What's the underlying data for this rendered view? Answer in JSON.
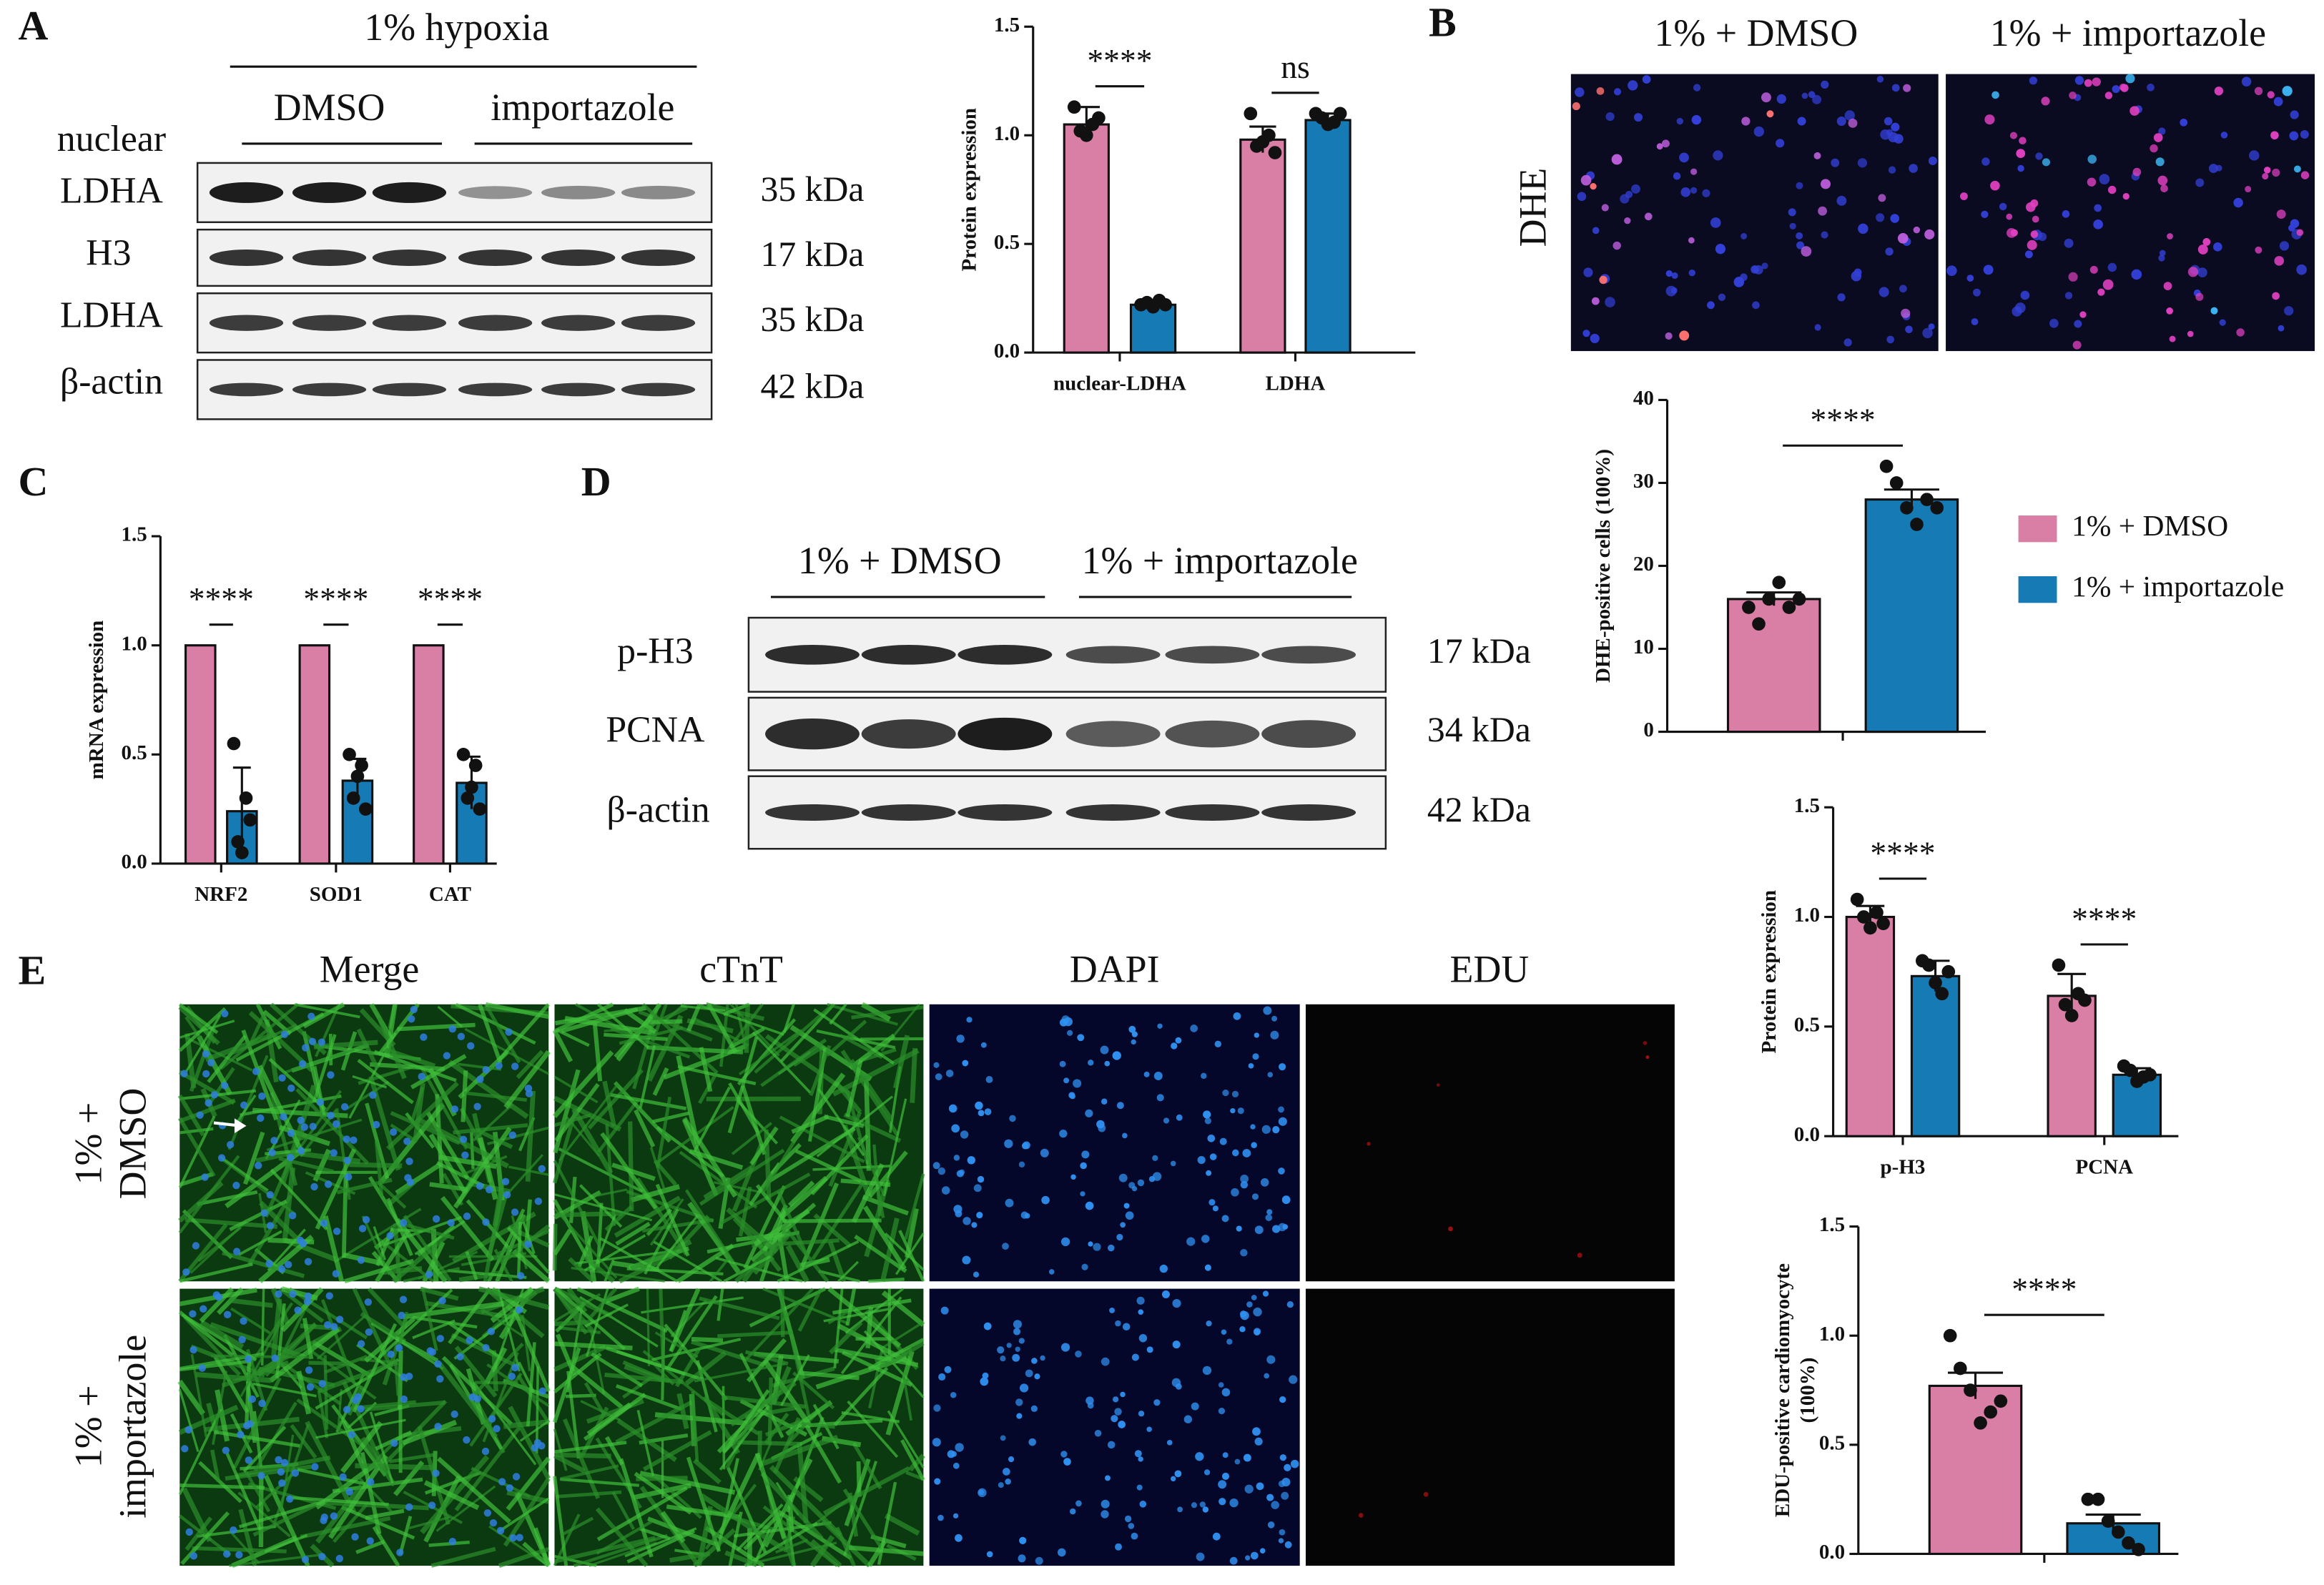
{
  "panels": {
    "A": {
      "letter": "A",
      "condition": "1% hypoxia",
      "groups": [
        "DMSO",
        "importazole"
      ],
      "fraction": "nuclear",
      "rows": [
        "LDHA",
        "H3",
        "LDHA",
        "β-actin"
      ],
      "sizes": [
        "35 kDa",
        "17 kDa",
        "35 kDa",
        "42 kDa"
      ]
    },
    "B": {
      "letter": "B",
      "columns": [
        "1% + DMSO",
        "1% + importazole"
      ],
      "row": "DHE"
    },
    "C": {
      "letter": "C"
    },
    "D": {
      "letter": "D",
      "groups": [
        "1% + DMSO",
        "1% + importazole"
      ],
      "rows": [
        "p-H3",
        "PCNA",
        "β-actin"
      ],
      "sizes": [
        "17 kDa",
        "34 kDa",
        "42 kDa"
      ]
    },
    "E": {
      "letter": "E",
      "columns": [
        "Merge",
        "cTnT",
        "DAPI",
        "EDU"
      ],
      "rows": [
        [
          "1% +",
          "DMSO"
        ],
        [
          "1% +",
          "importazole"
        ]
      ]
    }
  },
  "chart_data": [
    {
      "type": "bar",
      "ylabel": "Protein expression",
      "categories": [
        "nuclear-LDHA",
        "LDHA"
      ],
      "series": [
        {
          "color": "#d97ea5",
          "values": [
            1.05,
            0.98
          ],
          "errors": [
            0.08,
            0.06
          ],
          "points": [
            [
              1.13,
              1.02,
              1.0,
              1.05,
              1.08
            ],
            [
              1.1,
              0.95,
              0.97,
              1.0,
              0.92
            ]
          ]
        },
        {
          "color": "#167bb5",
          "values": [
            0.22,
            1.07
          ],
          "errors": [
            0.02,
            0.03
          ],
          "points": [
            [
              0.22,
              0.23,
              0.21,
              0.24,
              0.22
            ],
            [
              1.1,
              1.08,
              1.05,
              1.06,
              1.1
            ]
          ]
        }
      ],
      "annotations": [
        "****",
        "ns"
      ],
      "ylim": [
        0,
        1.5
      ],
      "yticks": [
        {
          "value": 0,
          "label": "0.0"
        },
        0.5,
        {
          "value": 1,
          "label": "1.0"
        },
        1.5
      ]
    },
    {
      "type": "bar",
      "ylabel": "DHE-positive cells (100%)",
      "series": [
        {
          "name": "1% + DMSO",
          "color": "#d97ea5",
          "values": [
            16
          ],
          "errors": [
            0.8
          ],
          "points": [
            [
              15,
              13,
              16,
              18,
              15,
              16
            ]
          ]
        },
        {
          "name": "1% + importazole",
          "color": "#167bb5",
          "values": [
            28
          ],
          "errors": [
            1.2
          ],
          "points": [
            [
              32,
              30,
              27,
              25,
              28,
              27
            ]
          ]
        }
      ],
      "annotations": [
        "****"
      ],
      "legend": "right",
      "ylim": [
        0,
        40
      ],
      "yticks": [
        0,
        10,
        20,
        30,
        40
      ]
    },
    {
      "type": "bar",
      "ylabel": "mRNA expression",
      "categories": [
        "NRF2",
        "SOD1",
        "CAT"
      ],
      "series": [
        {
          "color": "#d97ea5",
          "values": [
            1,
            1,
            1
          ]
        },
        {
          "color": "#167bb5",
          "values": [
            0.24,
            0.38,
            0.37
          ],
          "errors": [
            0.2,
            0.1,
            0.12
          ],
          "points": [
            [
              0.55,
              0.1,
              0.05,
              0.3,
              0.2
            ],
            [
              0.5,
              0.3,
              0.4,
              0.45,
              0.25
            ],
            [
              0.5,
              0.3,
              0.35,
              0.45,
              0.25
            ]
          ]
        }
      ],
      "annotations": [
        "****",
        "****",
        "****"
      ],
      "ylim": [
        0,
        1.5
      ],
      "yticks": [
        {
          "value": 0,
          "label": "0.0"
        },
        0.5,
        {
          "value": 1,
          "label": "1.0"
        },
        1.5
      ]
    },
    {
      "type": "bar",
      "ylabel": "Protein expression",
      "categories": [
        "p-H3",
        "PCNA"
      ],
      "series": [
        {
          "color": "#d97ea5",
          "values": [
            1.0,
            0.64
          ],
          "errors": [
            0.05,
            0.1
          ],
          "points": [
            [
              1.08,
              1.0,
              0.95,
              1.02,
              0.97
            ],
            [
              0.78,
              0.6,
              0.55,
              0.65,
              0.62
            ]
          ]
        },
        {
          "color": "#167bb5",
          "values": [
            0.73,
            0.28
          ],
          "errors": [
            0.07,
            0.03
          ],
          "points": [
            [
              0.8,
              0.78,
              0.7,
              0.65,
              0.75
            ],
            [
              0.32,
              0.3,
              0.25,
              0.27,
              0.28
            ]
          ]
        }
      ],
      "annotations": [
        "****",
        "****"
      ],
      "ylim": [
        0,
        1.5
      ],
      "yticks": [
        {
          "value": 0,
          "label": "0.0"
        },
        0.5,
        {
          "value": 1,
          "label": "1.0"
        },
        1.5
      ]
    },
    {
      "type": "bar",
      "ylabel": [
        "EDU-positive cardiomyocyte",
        "(100%)"
      ],
      "series": [
        {
          "color": "#d97ea5",
          "values": [
            0.77
          ],
          "errors": [
            0.06
          ],
          "points": [
            [
              1.0,
              0.85,
              0.75,
              0.6,
              0.65,
              0.7
            ]
          ]
        },
        {
          "color": "#167bb5",
          "values": [
            0.14
          ],
          "errors": [
            0.04
          ],
          "points": [
            [
              0.25,
              0.25,
              0.15,
              0.1,
              0.05,
              0.02
            ]
          ]
        }
      ],
      "annotations": [
        "****"
      ],
      "ylim": [
        0,
        1.5
      ],
      "yticks": [
        {
          "value": 0,
          "label": "0.0"
        },
        0.5,
        {
          "value": 1,
          "label": "1.0"
        },
        1.5
      ]
    }
  ]
}
